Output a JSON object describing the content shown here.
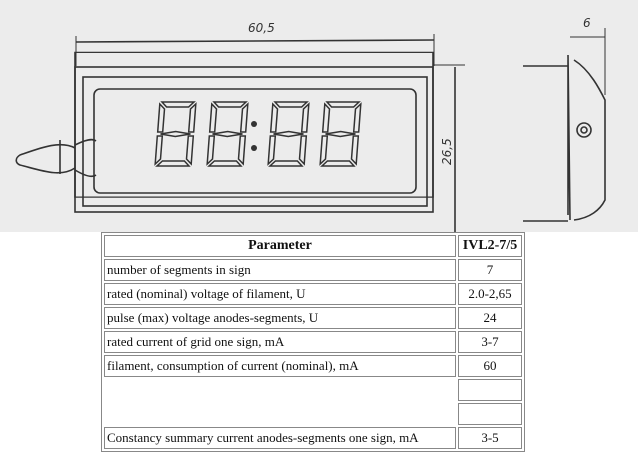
{
  "drawing": {
    "width_dim": "60,5",
    "height_dim": "26,5",
    "depth_dim": "6"
  },
  "table": {
    "header": {
      "parameter": "Parameter",
      "model": "IVL2-7/5"
    },
    "rows": [
      {
        "parameter": "number of segments in sign",
        "value": "7"
      },
      {
        "parameter": "rated (nominal) voltage of filament, U",
        "value": "2.0-2,65"
      },
      {
        "parameter": "pulse (max) voltage anodes-segments, U",
        "value": "24"
      },
      {
        "parameter": "rated current of grid one sign, mA",
        "value": "3-7"
      },
      {
        "parameter": "filament, consumption of current (nominal), mA",
        "value": "60"
      },
      {
        "parameter": "",
        "value": ""
      },
      {
        "parameter": "",
        "value": ""
      },
      {
        "parameter": "Constancy summary current anodes-segments one sign, mA",
        "value": "3-5"
      }
    ]
  }
}
